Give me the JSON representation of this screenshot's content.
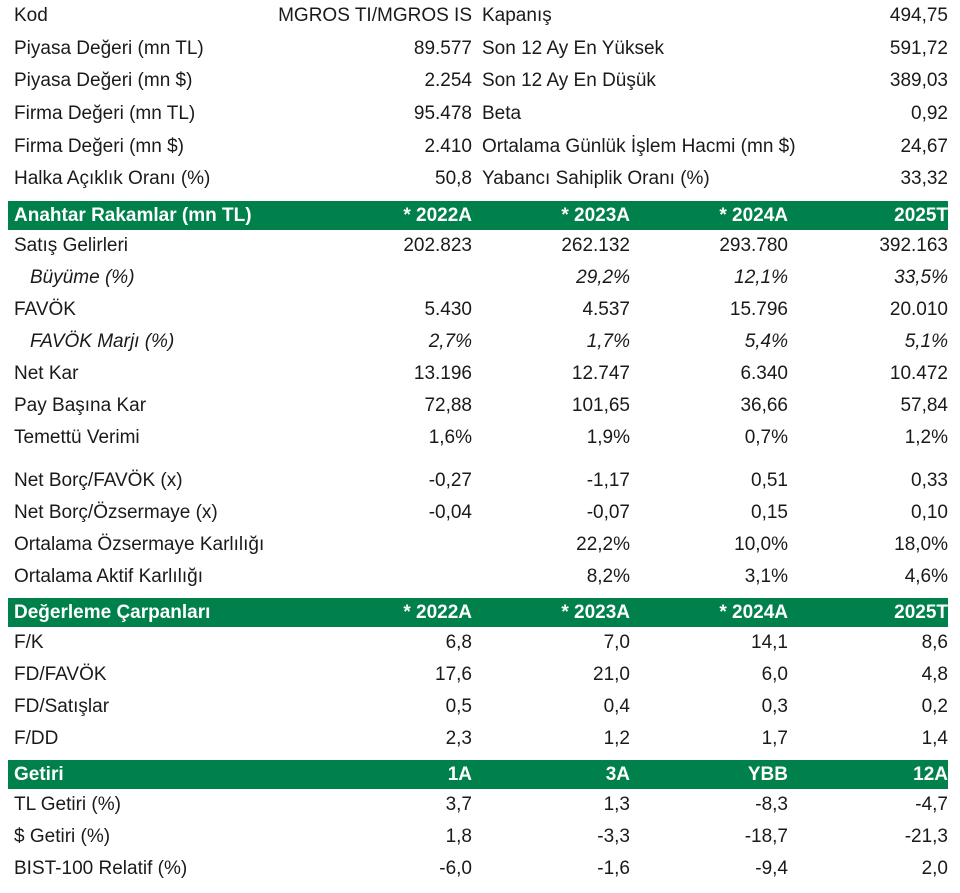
{
  "info": [
    {
      "l1": "Kod",
      "v1": "MGROS TI/MGROS IS",
      "l2": "Kapanış",
      "v2": "494,75"
    },
    {
      "l1": "Piyasa Değeri (mn TL)",
      "v1": "89.577",
      "l2": "Son 12 Ay En Yüksek",
      "v2": "591,72"
    },
    {
      "l1": "Piyasa Değeri (mn $)",
      "v1": "2.254",
      "l2": "Son 12 Ay En Düşük",
      "v2": "389,03"
    },
    {
      "l1": "Firma Değeri (mn TL)",
      "v1": "95.478",
      "l2": "Beta",
      "v2": "0,92"
    },
    {
      "l1": "Firma Değeri (mn $)",
      "v1": "2.410",
      "l2": "Ortalama Günlük İşlem Hacmi (mn $)",
      "v2": "24,67"
    },
    {
      "l1": "Halka Açıklık Oranı (%)",
      "v1": "50,8",
      "l2": "Yabancı Sahiplik Oranı (%)",
      "v2": "33,32"
    }
  ],
  "key_figures": {
    "header": {
      "label": "Anahtar Rakamlar (mn TL)",
      "c1": "* 2022A",
      "c2": "* 2023A",
      "c3": "* 2024A",
      "c4": "2025T"
    },
    "rows": [
      {
        "label": "Satış Gelirleri",
        "c1": "202.823",
        "c2": "262.132",
        "c3": "293.780",
        "c4": "392.163"
      },
      {
        "label": "Büyüme (%)",
        "c1": "",
        "c2": "29,2%",
        "c3": "12,1%",
        "c4": "33,5%"
      },
      {
        "label": "FAVÖK",
        "c1": "5.430",
        "c2": "4.537",
        "c3": "15.796",
        "c4": "20.010"
      },
      {
        "label": "FAVÖK Marjı (%)",
        "c1": "2,7%",
        "c2": "1,7%",
        "c3": "5,4%",
        "c4": "5,1%"
      },
      {
        "label": "Net Kar",
        "c1": "13.196",
        "c2": "12.747",
        "c3": "6.340",
        "c4": "10.472"
      },
      {
        "label": "Pay Başına Kar",
        "c1": "72,88",
        "c2": "101,65",
        "c3": "36,66",
        "c4": "57,84"
      },
      {
        "label": "Temettü Verimi",
        "c1": "1,6%",
        "c2": "1,9%",
        "c3": "0,7%",
        "c4": "1,2%"
      },
      {
        "label": "Net Borç/FAVÖK (x)",
        "c1": "-0,27",
        "c2": "-1,17",
        "c3": "0,51",
        "c4": "0,33"
      },
      {
        "label": "Net Borç/Özsermaye (x)",
        "c1": "-0,04",
        "c2": "-0,07",
        "c3": "0,15",
        "c4": "0,10"
      },
      {
        "label": "Ortalama Özsermaye Karlılığı",
        "c1": "",
        "c2": "22,2%",
        "c3": "10,0%",
        "c4": "18,0%"
      },
      {
        "label": "Ortalama Aktif Karlılığı",
        "c1": "",
        "c2": "8,2%",
        "c3": "3,1%",
        "c4": "4,6%"
      }
    ]
  },
  "multiples": {
    "header": {
      "label": "Değerleme Çarpanları",
      "c1": "* 2022A",
      "c2": "* 2023A",
      "c3": "* 2024A",
      "c4": "2025T"
    },
    "rows": [
      {
        "label": "F/K",
        "c1": "6,8",
        "c2": "7,0",
        "c3": "14,1",
        "c4": "8,6"
      },
      {
        "label": "FD/FAVÖK",
        "c1": "17,6",
        "c2": "21,0",
        "c3": "6,0",
        "c4": "4,8"
      },
      {
        "label": "FD/Satışlar",
        "c1": "0,5",
        "c2": "0,4",
        "c3": "0,3",
        "c4": "0,2"
      },
      {
        "label": "F/DD",
        "c1": "2,3",
        "c2": "1,2",
        "c3": "1,7",
        "c4": "1,4"
      }
    ]
  },
  "returns": {
    "header": {
      "label": "Getiri",
      "c1": "1A",
      "c2": "3A",
      "c3": "YBB",
      "c4": "12A"
    },
    "rows": [
      {
        "label": "TL Getiri (%)",
        "c1": "3,7",
        "c2": "1,3",
        "c3": "-8,3",
        "c4": "-4,7"
      },
      {
        "label": "$ Getiri (%)",
        "c1": "1,8",
        "c2": "-3,3",
        "c3": "-18,7",
        "c4": "-21,3"
      },
      {
        "label": "BIST-100 Relatif (%)",
        "c1": "-6,0",
        "c2": "-1,6",
        "c3": "-9,4",
        "c4": "2,0"
      }
    ]
  },
  "colors": {
    "band": "#00804a",
    "band_text": "#ffffff"
  }
}
